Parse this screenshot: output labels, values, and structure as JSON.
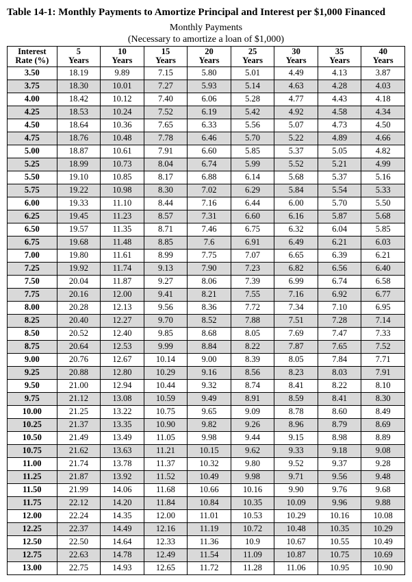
{
  "title": "Table 14-1: Monthly Payments to Amortize Principal and Interest per $1,000 Financed",
  "subtitle_line1": "Monthly Payments",
  "subtitle_line2": "(Necessary to amortize a loan of $1,000)",
  "header_line1": [
    "Interest",
    "5",
    "10",
    "15",
    "20",
    "25",
    "30",
    "35",
    "40"
  ],
  "header_line2": [
    "Rate (%)",
    "Years",
    "Years",
    "Years",
    "Years",
    "Years",
    "Years",
    "Years",
    "Years"
  ],
  "colors": {
    "shade": "#d9d9d9",
    "border": "#000000",
    "background": "#ffffff"
  },
  "rows": [
    {
      "rate": "3.50",
      "v": [
        "18.19",
        "9.89",
        "7.15",
        "5.80",
        "5.01",
        "4.49",
        "4.13",
        "3.87"
      ]
    },
    {
      "rate": "3.75",
      "v": [
        "18.30",
        "10.01",
        "7.27",
        "5.93",
        "5.14",
        "4.63",
        "4.28",
        "4.03"
      ]
    },
    {
      "rate": "4.00",
      "v": [
        "18.42",
        "10.12",
        "7.40",
        "6.06",
        "5.28",
        "4.77",
        "4.43",
        "4.18"
      ]
    },
    {
      "rate": "4.25",
      "v": [
        "18.53",
        "10.24",
        "7.52",
        "6.19",
        "5.42",
        "4.92",
        "4.58",
        "4.34"
      ]
    },
    {
      "rate": "4.50",
      "v": [
        "18.64",
        "10.36",
        "7.65",
        "6.33",
        "5.56",
        "5.07",
        "4.73",
        "4.50"
      ]
    },
    {
      "rate": "4.75",
      "v": [
        "18.76",
        "10.48",
        "7.78",
        "6.46",
        "5.70",
        "5.22",
        "4.89",
        "4.66"
      ]
    },
    {
      "rate": "5.00",
      "v": [
        "18.87",
        "10.61",
        "7.91",
        "6.60",
        "5.85",
        "5.37",
        "5.05",
        "4.82"
      ]
    },
    {
      "rate": "5.25",
      "v": [
        "18.99",
        "10.73",
        "8.04",
        "6.74",
        "5.99",
        "5.52",
        "5.21",
        "4.99"
      ]
    },
    {
      "rate": "5.50",
      "v": [
        "19.10",
        "10.85",
        "8.17",
        "6.88",
        "6.14",
        "5.68",
        "5.37",
        "5.16"
      ]
    },
    {
      "rate": "5.75",
      "v": [
        "19.22",
        "10.98",
        "8.30",
        "7.02",
        "6.29",
        "5.84",
        "5.54",
        "5.33"
      ]
    },
    {
      "rate": "6.00",
      "v": [
        "19.33",
        "11.10",
        "8.44",
        "7.16",
        "6.44",
        "6.00",
        "5.70",
        "5.50"
      ]
    },
    {
      "rate": "6.25",
      "v": [
        "19.45",
        "11.23",
        "8.57",
        "7.31",
        "6.60",
        "6.16",
        "5.87",
        "5.68"
      ]
    },
    {
      "rate": "6.50",
      "v": [
        "19.57",
        "11.35",
        "8.71",
        "7.46",
        "6.75",
        "6.32",
        "6.04",
        "5.85"
      ]
    },
    {
      "rate": "6.75",
      "v": [
        "19.68",
        "11.48",
        "8.85",
        "7.6",
        "6.91",
        "6.49",
        "6.21",
        "6.03"
      ]
    },
    {
      "rate": "7.00",
      "v": [
        "19.80",
        "11.61",
        "8.99",
        "7.75",
        "7.07",
        "6.65",
        "6.39",
        "6.21"
      ]
    },
    {
      "rate": "7.25",
      "v": [
        "19.92",
        "11.74",
        "9.13",
        "7.90",
        "7.23",
        "6.82",
        "6.56",
        "6.40"
      ]
    },
    {
      "rate": "7.50",
      "v": [
        "20.04",
        "11.87",
        "9.27",
        "8.06",
        "7.39",
        "6.99",
        "6.74",
        "6.58"
      ]
    },
    {
      "rate": "7.75",
      "v": [
        "20.16",
        "12.00",
        "9.41",
        "8.21",
        "7.55",
        "7.16",
        "6.92",
        "6.77"
      ]
    },
    {
      "rate": "8.00",
      "v": [
        "20.28",
        "12.13",
        "9.56",
        "8.36",
        "7.72",
        "7.34",
        "7.10",
        "6.95"
      ]
    },
    {
      "rate": "8.25",
      "v": [
        "20.40",
        "12.27",
        "9.70",
        "8.52",
        "7.88",
        "7.51",
        "7.28",
        "7.14"
      ]
    },
    {
      "rate": "8.50",
      "v": [
        "20.52",
        "12.40",
        "9.85",
        "8.68",
        "8.05",
        "7.69",
        "7.47",
        "7.33"
      ]
    },
    {
      "rate": "8.75",
      "v": [
        "20.64",
        "12.53",
        "9.99",
        "8.84",
        "8.22",
        "7.87",
        "7.65",
        "7.52"
      ]
    },
    {
      "rate": "9.00",
      "v": [
        "20.76",
        "12.67",
        "10.14",
        "9.00",
        "8.39",
        "8.05",
        "7.84",
        "7.71"
      ]
    },
    {
      "rate": "9.25",
      "v": [
        "20.88",
        "12.80",
        "10.29",
        "9.16",
        "8.56",
        "8.23",
        "8.03",
        "7.91"
      ]
    },
    {
      "rate": "9.50",
      "v": [
        "21.00",
        "12.94",
        "10.44",
        "9.32",
        "8.74",
        "8.41",
        "8.22",
        "8.10"
      ]
    },
    {
      "rate": "9.75",
      "v": [
        "21.12",
        "13.08",
        "10.59",
        "9.49",
        "8.91",
        "8.59",
        "8.41",
        "8.30"
      ]
    },
    {
      "rate": "10.00",
      "v": [
        "21.25",
        "13.22",
        "10.75",
        "9.65",
        "9.09",
        "8.78",
        "8.60",
        "8.49"
      ]
    },
    {
      "rate": "10.25",
      "v": [
        "21.37",
        "13.35",
        "10.90",
        "9.82",
        "9.26",
        "8.96",
        "8.79",
        "8.69"
      ]
    },
    {
      "rate": "10.50",
      "v": [
        "21.49",
        "13.49",
        "11.05",
        "9.98",
        "9.44",
        "9.15",
        "8.98",
        "8.89"
      ]
    },
    {
      "rate": "10.75",
      "v": [
        "21.62",
        "13.63",
        "11.21",
        "10.15",
        "9.62",
        "9.33",
        "9.18",
        "9.08"
      ]
    },
    {
      "rate": "11.00",
      "v": [
        "21.74",
        "13.78",
        "11.37",
        "10.32",
        "9.80",
        "9.52",
        "9.37",
        "9.28"
      ]
    },
    {
      "rate": "11.25",
      "v": [
        "21.87",
        "13.92",
        "11.52",
        "10.49",
        "9.98",
        "9.71",
        "9.56",
        "9.48"
      ]
    },
    {
      "rate": "11.50",
      "v": [
        "21.99",
        "14.06",
        "11.68",
        "10.66",
        "10.16",
        "9.90",
        "9.76",
        "9.68"
      ]
    },
    {
      "rate": "11.75",
      "v": [
        "22.12",
        "14.20",
        "11.84",
        "10.84",
        "10.35",
        "10.09",
        "9.96",
        "9.88"
      ]
    },
    {
      "rate": "12.00",
      "v": [
        "22.24",
        "14.35",
        "12.00",
        "11.01",
        "10.53",
        "10.29",
        "10.16",
        "10.08"
      ]
    },
    {
      "rate": "12.25",
      "v": [
        "22.37",
        "14.49",
        "12.16",
        "11.19",
        "10.72",
        "10.48",
        "10.35",
        "10.29"
      ]
    },
    {
      "rate": "12.50",
      "v": [
        "22.50",
        "14.64",
        "12.33",
        "11.36",
        "10.9",
        "10.67",
        "10.55",
        "10.49"
      ]
    },
    {
      "rate": "12.75",
      "v": [
        "22.63",
        "14.78",
        "12.49",
        "11.54",
        "11.09",
        "10.87",
        "10.75",
        "10.69"
      ]
    },
    {
      "rate": "13.00",
      "v": [
        "22.75",
        "14.93",
        "12.65",
        "11.72",
        "11.28",
        "11.06",
        "10.95",
        "10.90"
      ]
    }
  ]
}
